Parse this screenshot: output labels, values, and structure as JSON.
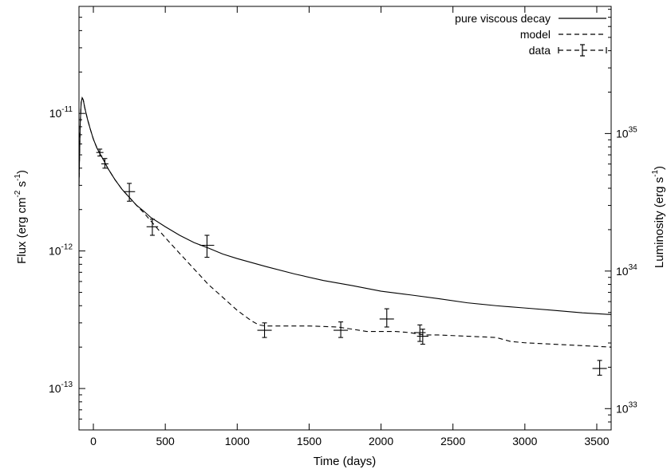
{
  "chart_data": {
    "type": "line",
    "title": "",
    "xlabel": "Time (days)",
    "ylabel": "Flux (erg cm^-2 s^-1)",
    "ylabel_parts": {
      "pre": "Flux (erg cm",
      "e1": "-2",
      "mid": " s",
      "e2": "-1",
      "post": ")"
    },
    "y2label": "Luminosity (erg s^-1)",
    "y2label_parts": {
      "pre": "Luminosity (erg s",
      "e1": "-1",
      "post": ")"
    },
    "xlim": [
      -100,
      3600
    ],
    "ylim": [
      5e-14,
      6e-11
    ],
    "y_scale": "log",
    "y2lim": [
      7e+32,
      8.4e+35
    ],
    "y2_scale": "log",
    "x_ticks": [
      "0",
      "500",
      "1000",
      "1500",
      "2000",
      "2500",
      "3000",
      "3500"
    ],
    "y_ticks": [
      {
        "base": "10",
        "exp": "-11"
      },
      {
        "base": "10",
        "exp": "-12"
      },
      {
        "base": "10",
        "exp": "-13"
      }
    ],
    "y2_ticks": [
      {
        "base": "10",
        "exp": "35"
      },
      {
        "base": "10",
        "exp": "34"
      },
      {
        "base": "10",
        "exp": "33"
      }
    ],
    "legend": {
      "position": "top-right"
    },
    "series": [
      {
        "name": "pure viscous decay",
        "style": "solid",
        "x": [
          -100,
          -92,
          -85,
          -78,
          -70,
          -60,
          -40,
          -20,
          0,
          25,
          50,
          75,
          100,
          150,
          200,
          250,
          300,
          350,
          400,
          500,
          600,
          700,
          800,
          900,
          1000,
          1200,
          1400,
          1600,
          1800,
          2000,
          2200,
          2400,
          2600,
          2800,
          3000,
          3200,
          3400,
          3600
        ],
        "y": [
          3e-12,
          8e-12,
          1.2e-11,
          1.3e-11,
          1.25e-11,
          1.1e-11,
          9e-12,
          7.6e-12,
          6.5e-12,
          5.6e-12,
          5e-12,
          4.5e-12,
          4e-12,
          3.3e-12,
          2.8e-12,
          2.45e-12,
          2.15e-12,
          1.95e-12,
          1.75e-12,
          1.5e-12,
          1.3e-12,
          1.15e-12,
          1.05e-12,
          9.5e-13,
          8.8e-13,
          7.7e-13,
          6.8e-13,
          6.1e-13,
          5.6e-13,
          5.1e-13,
          4.8e-13,
          4.5e-13,
          4.2e-13,
          4e-13,
          3.85e-13,
          3.7e-13,
          3.55e-13,
          3.45e-13
        ]
      },
      {
        "name": "model",
        "style": "dashed",
        "x": [
          -100,
          -92,
          -85,
          -78,
          -70,
          -60,
          -40,
          -20,
          0,
          25,
          50,
          75,
          100,
          150,
          200,
          250,
          300,
          350,
          400,
          500,
          600,
          700,
          800,
          900,
          1000,
          1100,
          1150,
          1200,
          1300,
          1500,
          1700,
          1800,
          1900,
          2000,
          2100,
          2200,
          2300,
          2400,
          2600,
          2800,
          2900,
          3000,
          3200,
          3400,
          3600
        ],
        "y": [
          3e-12,
          8e-12,
          1.2e-11,
          1.3e-11,
          1.25e-11,
          1.1e-11,
          9e-12,
          7.6e-12,
          6.5e-12,
          5.6e-12,
          5e-12,
          4.5e-12,
          4e-12,
          3.3e-12,
          2.8e-12,
          2.45e-12,
          2.15e-12,
          1.9e-12,
          1.65e-12,
          1.25e-12,
          9.6e-13,
          7.4e-13,
          5.7e-13,
          4.6e-13,
          3.7e-13,
          3.1e-13,
          2.9e-13,
          2.85e-13,
          2.85e-13,
          2.85e-13,
          2.8e-13,
          2.7e-13,
          2.6e-13,
          2.6e-13,
          2.6e-13,
          2.55e-13,
          2.45e-13,
          2.45e-13,
          2.4e-13,
          2.35e-13,
          2.2e-13,
          2.15e-13,
          2.1e-13,
          2.05e-13,
          2e-13
        ]
      },
      {
        "name": "data",
        "style": "errorbar",
        "points": [
          {
            "x": 45,
            "y": 5.2e-12,
            "xerr": 25,
            "ylo": 4.9e-12,
            "yhi": 5.5e-12
          },
          {
            "x": 80,
            "y": 4.3e-12,
            "xerr": 25,
            "ylo": 4e-12,
            "yhi": 4.7e-12
          },
          {
            "x": 250,
            "y": 2.7e-12,
            "xerr": 40,
            "ylo": 2.3e-12,
            "yhi": 3.1e-12
          },
          {
            "x": 410,
            "y": 1.5e-12,
            "xerr": 40,
            "ylo": 1.3e-12,
            "yhi": 1.7e-12
          },
          {
            "x": 790,
            "y": 1.1e-12,
            "xerr": 50,
            "ylo": 9e-13,
            "yhi": 1.3e-12
          },
          {
            "x": 1190,
            "y": 2.65e-13,
            "xerr": 50,
            "ylo": 2.35e-13,
            "yhi": 3e-13
          },
          {
            "x": 1720,
            "y": 2.65e-13,
            "xerr": 50,
            "ylo": 2.35e-13,
            "yhi": 3.05e-13
          },
          {
            "x": 2040,
            "y": 3.2e-13,
            "xerr": 50,
            "ylo": 2.8e-13,
            "yhi": 3.8e-13
          },
          {
            "x": 2270,
            "y": 2.55e-13,
            "xerr": 40,
            "ylo": 2.2e-13,
            "yhi": 2.9e-13
          },
          {
            "x": 2290,
            "y": 2.4e-13,
            "xerr": 40,
            "ylo": 2.1e-13,
            "yhi": 2.7e-13
          },
          {
            "x": 3520,
            "y": 1.4e-13,
            "xerr": 50,
            "ylo": 1.25e-13,
            "yhi": 1.6e-13
          }
        ]
      }
    ]
  }
}
